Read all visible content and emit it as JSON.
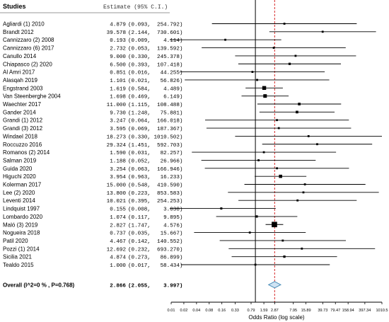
{
  "chart_data": {
    "type": "forest",
    "header": {
      "studies": "Studies",
      "estimate": "Estimate (95% C.I.)"
    },
    "xlabel": "Odds Ratio (log scale)",
    "x_scale": "log",
    "xlim": [
      0.01,
      1010.5
    ],
    "x_ticks": [
      "0.01",
      "0.02",
      "0.04",
      "0.08",
      "0.16",
      "0.33",
      "0.79",
      "1.59",
      "2.87",
      "7.95",
      "15.89",
      "39.73",
      "79.47",
      "158.94",
      "397.34",
      "1010.5"
    ],
    "x_tick_values": [
      0.01,
      0.02,
      0.04,
      0.08,
      0.16,
      0.33,
      0.79,
      1.59,
      2.87,
      7.95,
      15.89,
      39.73,
      79.47,
      158.94,
      397.34,
      1010.5
    ],
    "null_line": 1,
    "pooled_line": 2.866,
    "colors": {
      "pooled_line": "#d62728",
      "diamond_fill": "#cfe3f3",
      "diamond_stroke": "#4a8db8",
      "ink": "#000000"
    },
    "studies": [
      {
        "name": "Agliardi (1) 2010",
        "est": "4.879",
        "ci": "(0.093,  254.792)",
        "or": 4.879,
        "lo": 0.093,
        "hi": 254.792,
        "w": 1
      },
      {
        "name": "Brandt 2012",
        "est": "39.578",
        "ci": "(2.144,  730.601)",
        "or": 39.578,
        "lo": 2.144,
        "hi": 730.601,
        "w": 1
      },
      {
        "name": "Cannizzaro (2) 2008",
        "est": "0.193",
        "ci": "(0.009,    4.114)",
        "or": 0.193,
        "lo": 0.009,
        "hi": 4.114,
        "w": 1
      },
      {
        "name": "Cannizzaro (6) 2017",
        "est": "2.732",
        "ci": "(0.053,  139.592)",
        "or": 2.732,
        "lo": 0.053,
        "hi": 139.592,
        "w": 1
      },
      {
        "name": "Canullo 2014",
        "est": "9.000",
        "ci": "(0.330,  245.378)",
        "or": 9.0,
        "lo": 0.33,
        "hi": 245.378,
        "w": 1
      },
      {
        "name": "Chiapasco (2) 2020",
        "est": "6.500",
        "ci": "(0.393,  107.418)",
        "or": 6.5,
        "lo": 0.393,
        "hi": 107.418,
        "w": 1.2
      },
      {
        "name": "Al Amri 2017",
        "est": "0.851",
        "ci": "(0.016,   44.255)",
        "or": 0.851,
        "lo": 0.016,
        "hi": 44.255,
        "w": 1
      },
      {
        "name": "Alasqah 2019",
        "est": "1.101",
        "ci": "(0.021,   56.826)",
        "or": 1.101,
        "lo": 0.021,
        "hi": 56.826,
        "w": 1
      },
      {
        "name": "Engstrand 2003",
        "est": "1.619",
        "ci": "(0.584,    4.489)",
        "or": 1.619,
        "lo": 0.584,
        "hi": 4.489,
        "w": 2.2
      },
      {
        "name": "Van Steenberghe 2004",
        "est": "1.698",
        "ci": "(0.469,    6.149)",
        "or": 1.698,
        "lo": 0.469,
        "hi": 6.149,
        "w": 2.0
      },
      {
        "name": "Waechter 2017",
        "est": "11.000",
        "ci": "(1.115,  108.488)",
        "or": 11.0,
        "lo": 1.115,
        "hi": 108.488,
        "w": 1.4
      },
      {
        "name": "Gander 2014",
        "est": "9.730",
        "ci": "(1.248,   75.881)",
        "or": 9.73,
        "lo": 1.248,
        "hi": 75.881,
        "w": 1.4
      },
      {
        "name": "Grandi (1) 2012",
        "est": "3.247",
        "ci": "(0.064,  166.018)",
        "or": 3.247,
        "lo": 0.064,
        "hi": 166.018,
        "w": 1
      },
      {
        "name": "Grandi (3) 2012",
        "est": "3.595",
        "ci": "(0.069,  187.367)",
        "or": 3.595,
        "lo": 0.069,
        "hi": 187.367,
        "w": 1
      },
      {
        "name": "Windael 2018",
        "est": "18.273",
        "ci": "(0.330, 1010.502)",
        "or": 18.273,
        "lo": 0.33,
        "hi": 1010.502,
        "w": 1
      },
      {
        "name": "Roccuzzo 2016",
        "est": "29.324",
        "ci": "(1.451,  592.703)",
        "or": 29.324,
        "lo": 1.451,
        "hi": 592.703,
        "w": 1
      },
      {
        "name": "Romanos (2) 2014",
        "est": "1.590",
        "ci": "(0.031,   82.257)",
        "or": 1.59,
        "lo": 0.031,
        "hi": 82.257,
        "w": 1
      },
      {
        "name": "Salman 2019",
        "est": "1.188",
        "ci": "(0.052,   26.966)",
        "or": 1.188,
        "lo": 0.052,
        "hi": 26.966,
        "w": 1
      },
      {
        "name": "Guida 2020",
        "est": "3.254",
        "ci": "(0.063,  166.946)",
        "or": 3.254,
        "lo": 0.063,
        "hi": 166.946,
        "w": 1
      },
      {
        "name": "Higuchi 2020",
        "est": "3.954",
        "ci": "(0.963,   16.233)",
        "or": 3.954,
        "lo": 0.963,
        "hi": 16.233,
        "w": 1.8
      },
      {
        "name": "Kolerman 2017",
        "est": "15.000",
        "ci": "(0.548,  410.590)",
        "or": 15.0,
        "lo": 0.548,
        "hi": 410.59,
        "w": 1
      },
      {
        "name": "Lee (2) 2020",
        "est": "13.800",
        "ci": "(0.223,  853.583)",
        "or": 13.8,
        "lo": 0.223,
        "hi": 853.583,
        "w": 1
      },
      {
        "name": "Leventi 2014",
        "est": "10.021",
        "ci": "(0.395,  254.253)",
        "or": 10.021,
        "lo": 0.395,
        "hi": 254.253,
        "w": 1
      },
      {
        "name": "Lindquist 1997",
        "est": "0.155",
        "ci": "(0.008,    3.038)",
        "or": 0.155,
        "lo": 0.008,
        "hi": 3.038,
        "w": 1.1
      },
      {
        "name": "Lombardo 2020",
        "est": "1.074",
        "ci": "(0.117,    9.895)",
        "or": 1.074,
        "lo": 0.117,
        "hi": 9.895,
        "w": 1.2
      },
      {
        "name": "Maló (3) 2019",
        "est": "2.827",
        "ci": "(1.747,    4.576)",
        "or": 2.827,
        "lo": 1.747,
        "hi": 4.576,
        "w": 3.2
      },
      {
        "name": "Nogueira 2018",
        "est": "0.737",
        "ci": "(0.035,   15.667)",
        "or": 0.737,
        "lo": 0.035,
        "hi": 15.667,
        "w": 1
      },
      {
        "name": "Patil 2020",
        "est": "4.467",
        "ci": "(0.142,  140.552)",
        "or": 4.467,
        "lo": 0.142,
        "hi": 140.552,
        "w": 1
      },
      {
        "name": "Pozzi (1) 2014",
        "est": "12.692",
        "ci": "(0.232,  693.270)",
        "or": 12.692,
        "lo": 0.232,
        "hi": 693.27,
        "w": 1
      },
      {
        "name": "Sicilia 2021",
        "est": "4.874",
        "ci": "(0.273,   86.899)",
        "or": 4.874,
        "lo": 0.273,
        "hi": 86.899,
        "w": 1.2
      },
      {
        "name": "Tealdo 2015",
        "est": "1.000",
        "ci": "(0.017,   58.434)",
        "or": 1.0,
        "lo": 0.017,
        "hi": 58.434,
        "w": 1
      }
    ],
    "overall": {
      "label": "Overall (I^2=0 % , P=0.768)",
      "est": "2.866",
      "ci": "(2.055,    3.997)",
      "or": 2.866,
      "lo": 2.055,
      "hi": 3.997
    }
  }
}
